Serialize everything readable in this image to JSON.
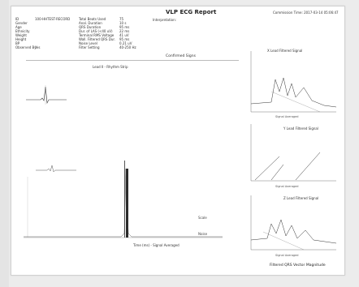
{
  "report": {
    "title": "VLP ECG Report",
    "timestamp": "Commission Time: 2017-03-14 05:06:47",
    "interpretation_label": "Interpretation:",
    "confirmed_label": "Confirmed Signs",
    "waveform_label": "Lead II - Rhythm Strip",
    "bottom_axis_label": "Time (ms) - Signal Averaged",
    "right_bottom_label": "Filtered QRS Vector Magnitude"
  },
  "patient": [
    {
      "key": "ID",
      "value": "100-HHTEST-RECORD"
    },
    {
      "key": "Gender",
      "value": ""
    },
    {
      "key": "Age",
      "value": ""
    },
    {
      "key": "Ethnicity",
      "value": ""
    },
    {
      "key": "Weight",
      "value": ""
    },
    {
      "key": "Height",
      "value": ""
    },
    {
      "key": "BP",
      "value": ""
    },
    {
      "key": "Observed By",
      "value": "Yes"
    }
  ],
  "measurements": [
    {
      "key": "Total Beats Used",
      "value": "75"
    },
    {
      "key": "Anal. Duration",
      "value": "10 s"
    },
    {
      "key": "QRS Duration",
      "value": "95 ms"
    },
    {
      "key": "Dur. of LAS (<40 uV)",
      "value": "22 ms"
    },
    {
      "key": "Terminal RMS Voltage",
      "value": "41 uV"
    },
    {
      "key": "Wall. Filtered QRS Dur.",
      "value": "95 ms"
    },
    {
      "key": "Noise Level",
      "value": "0.21 uV"
    },
    {
      "key": "Filter Setting",
      "value": "40-250 Hz"
    }
  ],
  "right_panels": [
    {
      "title": "X Lead Filtered Signal",
      "subtitle": "Signal Averaged"
    },
    {
      "title": "Y Lead Filtered Signal",
      "subtitle": "Signal Averaged"
    },
    {
      "title": "Z Lead Filtered Signal",
      "subtitle": "Signal Averaged"
    }
  ],
  "side_labels": {
    "top": "Scale",
    "bottom": "Noise"
  }
}
